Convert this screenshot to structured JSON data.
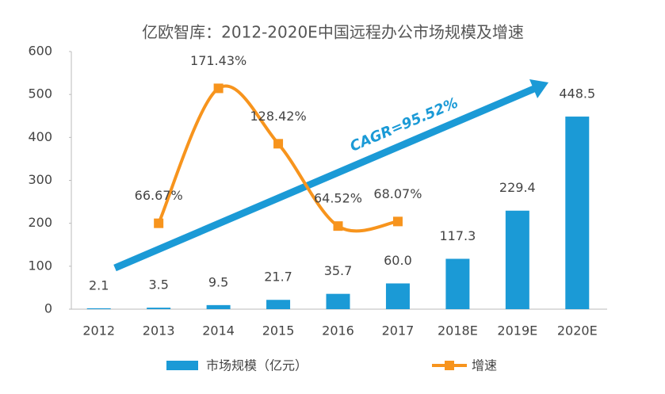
{
  "chart_data": {
    "type": "bar",
    "title": "亿欧智库：2012-2020E中国远程办公市场规模及增速",
    "categories": [
      "2012",
      "2013",
      "2014",
      "2015",
      "2016",
      "2017",
      "2018E",
      "2019E",
      "2020E"
    ],
    "series": [
      {
        "name": "市场规模（亿元）",
        "type": "bar",
        "color": "#1b9ad6",
        "values": [
          2.1,
          3.5,
          9.5,
          21.7,
          35.7,
          60.0,
          117.3,
          229.4,
          448.5
        ],
        "value_labels": [
          "2.1",
          "3.5",
          "9.5",
          "21.7",
          "35.7",
          "60.0",
          "117.3",
          "229.4",
          "448.5"
        ]
      },
      {
        "name": "增速",
        "type": "line",
        "axis": "y2",
        "color": "#f7941d",
        "values": [
          null,
          66.67,
          171.43,
          128.42,
          64.52,
          68.07,
          null,
          null,
          null
        ],
        "value_labels": [
          null,
          "66.67%",
          "171.43%",
          "128.42%",
          "64.52%",
          "68.07%",
          null,
          null,
          null
        ]
      }
    ],
    "ylim": [
      0,
      600
    ],
    "yticks": [
      0,
      100,
      200,
      300,
      400,
      500,
      600
    ],
    "y2lim": [
      0,
      200
    ],
    "annotation": "CAGR=95.52%",
    "legend": "bottom"
  }
}
